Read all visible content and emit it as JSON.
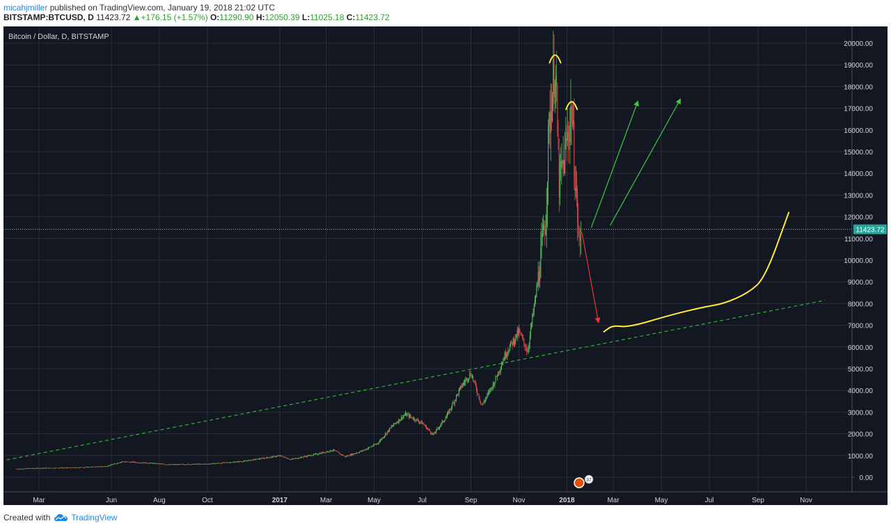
{
  "header": {
    "author": "micahjmiller",
    "published_text": "published on TradingView.com, January 19, 2018 21:02 UTC",
    "symbol": "BITSTAMP:BTCUSD, D",
    "last_price": "11423.72",
    "change": "+176.15 (+1.57%)",
    "open_label": "O:",
    "open_value": "11290.90",
    "high_label": "H:",
    "high_value": "12050.39",
    "low_label": "L:",
    "low_value": "11025.18",
    "close_label": "C:",
    "close_value": "11423.72"
  },
  "footer": {
    "created_with": "Created with",
    "brand": "TradingView"
  },
  "colors": {
    "background": "#131722",
    "grid": "#2a2e39",
    "up": "#5fbf5f",
    "down": "#e04848",
    "trendline": "#35b035",
    "yellow": "#ffeb3b",
    "green_arrow": "#3ccd3c",
    "red_arrow": "#e53935",
    "price_tag": "#26a69a"
  },
  "chart_data": {
    "type": "candlestick",
    "title": "Bitcoin / Dollar, D, BITSTAMP",
    "xlabel": "",
    "ylabel": "",
    "ylim": [
      -1000,
      20800
    ],
    "yticks": [
      "20000.00",
      "19000.00",
      "18000.00",
      "17000.00",
      "16000.00",
      "15000.00",
      "14000.00",
      "13000.00",
      "12000.00",
      "11000.00",
      "10000.00",
      "9000.00",
      "8000.00",
      "7000.00",
      "6000.00",
      "5000.00",
      "4000.00",
      "3000.00",
      "2000.00",
      "1000.00",
      "0.00"
    ],
    "xticks": [
      "Mar",
      "Jun",
      "Aug",
      "Oct",
      "2017",
      "Mar",
      "May",
      "Jul",
      "Sep",
      "Nov",
      "2018",
      "Mar",
      "May",
      "Jul",
      "Sep",
      "Nov"
    ],
    "current_price_label": "11423.72",
    "current_price": 11423.72,
    "price_path": [
      [
        "2016-02-01",
        380
      ],
      [
        "2016-03-01",
        420
      ],
      [
        "2016-04-15",
        440
      ],
      [
        "2016-05-25",
        500
      ],
      [
        "2016-06-15",
        720
      ],
      [
        "2016-07-15",
        660
      ],
      [
        "2016-08-15",
        580
      ],
      [
        "2016-10-01",
        610
      ],
      [
        "2016-11-15",
        730
      ],
      [
        "2017-01-01",
        990
      ],
      [
        "2017-01-15",
        820
      ],
      [
        "2017-02-15",
        1050
      ],
      [
        "2017-03-10",
        1250
      ],
      [
        "2017-03-25",
        950
      ],
      [
        "2017-04-15",
        1200
      ],
      [
        "2017-05-05",
        1550
      ],
      [
        "2017-05-25",
        2400
      ],
      [
        "2017-06-10",
        2900
      ],
      [
        "2017-07-01",
        2500
      ],
      [
        "2017-07-15",
        1950
      ],
      [
        "2017-08-01",
        2800
      ],
      [
        "2017-08-20",
        4200
      ],
      [
        "2017-09-01",
        4800
      ],
      [
        "2017-09-15",
        3300
      ],
      [
        "2017-10-01",
        4400
      ],
      [
        "2017-10-15",
        5700
      ],
      [
        "2017-11-01",
        6700
      ],
      [
        "2017-11-12",
        5800
      ],
      [
        "2017-11-25",
        9000
      ],
      [
        "2017-12-05",
        12000
      ],
      [
        "2017-12-09",
        16000
      ],
      [
        "2017-12-17",
        19200
      ],
      [
        "2017-12-22",
        13500
      ],
      [
        "2017-12-28",
        14500
      ],
      [
        "2018-01-07",
        17000
      ],
      [
        "2018-01-12",
        13500
      ],
      [
        "2018-01-17",
        10500
      ],
      [
        "2018-01-19",
        11423.72
      ]
    ],
    "annotations": {
      "support_trendline": [
        [
          "2016-01-20",
          800
        ],
        [
          "2018-11-25",
          8150
        ]
      ],
      "green_arrows": [
        [
          [
            "2018-02-01",
            11500
          ],
          [
            "2018-04-01",
            17300
          ]
        ],
        [
          [
            "2018-02-25",
            11600
          ],
          [
            "2018-05-25",
            17400
          ]
        ]
      ],
      "red_arrow": [
        [
          "2018-01-20",
          11300
        ],
        [
          "2018-02-10",
          7150
        ]
      ],
      "yellow_projection": [
        [
          "2018-02-17",
          6700
        ],
        [
          "2018-02-28",
          7000
        ],
        [
          "2018-03-20",
          6900
        ],
        [
          "2018-05-15",
          7500
        ],
        [
          "2018-06-25",
          7850
        ],
        [
          "2018-07-20",
          8000
        ],
        [
          "2018-08-20",
          8500
        ],
        [
          "2018-09-10",
          9200
        ],
        [
          "2018-10-10",
          12200
        ]
      ],
      "peak_arcs": [
        [
          "2017-12-17",
          19350
        ],
        [
          "2018-01-07",
          17200
        ]
      ]
    }
  }
}
